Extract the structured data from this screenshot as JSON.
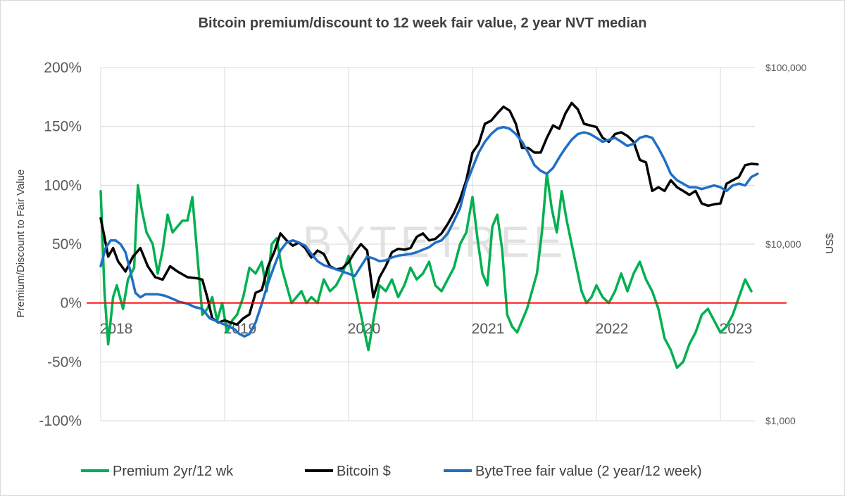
{
  "chart_data": {
    "type": "line",
    "title": "Bitcoin premium/discount to 12 week fair value, 2 year NVT median",
    "ylabel": "Premium/Discount to Fair Value",
    "y2label": "US$",
    "watermark": "BYTETREE",
    "x_ticks": [
      2018,
      2019,
      2020,
      2021,
      2022,
      2023
    ],
    "xlim": [
      2018.0,
      2023.4
    ],
    "ylim": [
      -100,
      200
    ],
    "y_ticks": [
      {
        "value": 200,
        "label": "200%"
      },
      {
        "value": 150,
        "label": "150%"
      },
      {
        "value": 100,
        "label": "100%"
      },
      {
        "value": 50,
        "label": "50%"
      },
      {
        "value": 0,
        "label": "0%"
      },
      {
        "value": -50,
        "label": "-50%"
      },
      {
        "value": -100,
        "label": "-100%"
      }
    ],
    "y2_scale": "log",
    "y2lim": [
      1000,
      100000
    ],
    "y2_ticks": [
      {
        "value": 100000,
        "label": "$100,000"
      },
      {
        "value": 10000,
        "label": "$10,000"
      },
      {
        "value": 1000,
        "label": "$1,000"
      }
    ],
    "reference_line": {
      "value": 0,
      "color": "#ff0000"
    },
    "legend": {
      "position": "bottom"
    },
    "series": [
      {
        "name": "Premium 2yr/12 wk",
        "axis": "left",
        "color": "#00b050",
        "x": [
          2018.0,
          2018.03,
          2018.06,
          2018.1,
          2018.13,
          2018.18,
          2018.22,
          2018.27,
          2018.3,
          2018.33,
          2018.37,
          2018.42,
          2018.46,
          2018.5,
          2018.54,
          2018.58,
          2018.62,
          2018.66,
          2018.7,
          2018.74,
          2018.78,
          2018.82,
          2018.86,
          2018.9,
          2018.94,
          2018.98,
          2019.02,
          2019.06,
          2019.1,
          2019.15,
          2019.2,
          2019.25,
          2019.3,
          2019.34,
          2019.38,
          2019.42,
          2019.46,
          2019.5,
          2019.54,
          2019.58,
          2019.62,
          2019.66,
          2019.7,
          2019.75,
          2019.8,
          2019.85,
          2019.9,
          2019.95,
          2020.0,
          2020.04,
          2020.08,
          2020.12,
          2020.16,
          2020.2,
          2020.25,
          2020.3,
          2020.35,
          2020.4,
          2020.45,
          2020.5,
          2020.55,
          2020.6,
          2020.65,
          2020.7,
          2020.75,
          2020.8,
          2020.85,
          2020.9,
          2020.95,
          2021.0,
          2021.04,
          2021.08,
          2021.12,
          2021.16,
          2021.2,
          2021.24,
          2021.28,
          2021.32,
          2021.36,
          2021.4,
          2021.44,
          2021.48,
          2021.52,
          2021.56,
          2021.6,
          2021.64,
          2021.68,
          2021.72,
          2021.76,
          2021.8,
          2021.84,
          2021.88,
          2021.92,
          2021.96,
          2022.0,
          2022.05,
          2022.1,
          2022.15,
          2022.2,
          2022.25,
          2022.3,
          2022.35,
          2022.4,
          2022.45,
          2022.5,
          2022.55,
          2022.6,
          2022.65,
          2022.7,
          2022.75,
          2022.8,
          2022.85,
          2022.9,
          2022.95,
          2023.0,
          2023.05,
          2023.1,
          2023.15,
          2023.2,
          2023.25
        ],
        "y": [
          95,
          10,
          -35,
          5,
          15,
          -5,
          20,
          30,
          100,
          80,
          60,
          50,
          25,
          45,
          75,
          60,
          65,
          70,
          70,
          90,
          40,
          -10,
          -5,
          5,
          -15,
          0,
          -25,
          -15,
          -10,
          5,
          30,
          25,
          35,
          10,
          50,
          55,
          30,
          15,
          0,
          5,
          10,
          0,
          5,
          0,
          20,
          10,
          15,
          25,
          40,
          20,
          0,
          -20,
          -40,
          -15,
          15,
          10,
          20,
          5,
          15,
          30,
          20,
          25,
          35,
          15,
          10,
          20,
          30,
          50,
          60,
          90,
          55,
          25,
          15,
          65,
          75,
          45,
          -10,
          -20,
          -25,
          -15,
          -5,
          10,
          25,
          60,
          110,
          80,
          60,
          95,
          70,
          50,
          30,
          10,
          0,
          5,
          15,
          5,
          0,
          10,
          25,
          10,
          25,
          35,
          20,
          10,
          -5,
          -30,
          -40,
          -55,
          -50,
          -35,
          -25,
          -10,
          -5,
          -15,
          -25,
          -20,
          -10,
          5,
          20,
          10
        ]
      },
      {
        "name": "Bitcoin $",
        "axis": "right",
        "color": "#000000",
        "x": [
          2018.0,
          2018.03,
          2018.06,
          2018.1,
          2018.14,
          2018.2,
          2018.26,
          2018.32,
          2018.38,
          2018.44,
          2018.5,
          2018.56,
          2018.62,
          2018.7,
          2018.78,
          2018.82,
          2018.86,
          2018.9,
          2018.95,
          2019.0,
          2019.05,
          2019.1,
          2019.15,
          2019.2,
          2019.25,
          2019.3,
          2019.35,
          2019.4,
          2019.45,
          2019.5,
          2019.55,
          2019.6,
          2019.65,
          2019.7,
          2019.75,
          2019.8,
          2019.85,
          2019.9,
          2019.95,
          2020.0,
          2020.05,
          2020.1,
          2020.15,
          2020.2,
          2020.25,
          2020.3,
          2020.35,
          2020.4,
          2020.45,
          2020.5,
          2020.55,
          2020.6,
          2020.65,
          2020.7,
          2020.75,
          2020.8,
          2020.85,
          2020.9,
          2020.95,
          2021.0,
          2021.05,
          2021.1,
          2021.15,
          2021.2,
          2021.25,
          2021.3,
          2021.35,
          2021.4,
          2021.45,
          2021.5,
          2021.55,
          2021.6,
          2021.65,
          2021.7,
          2021.75,
          2021.8,
          2021.85,
          2021.9,
          2021.95,
          2022.0,
          2022.05,
          2022.1,
          2022.15,
          2022.2,
          2022.25,
          2022.3,
          2022.35,
          2022.4,
          2022.45,
          2022.5,
          2022.55,
          2022.6,
          2022.65,
          2022.7,
          2022.75,
          2022.8,
          2022.85,
          2022.9,
          2022.95,
          2023.0,
          2023.05,
          2023.1,
          2023.15,
          2023.2,
          2023.25,
          2023.3
        ],
        "y": [
          14000,
          11000,
          8500,
          9500,
          8000,
          7000,
          8500,
          9500,
          7500,
          6500,
          6300,
          7500,
          7000,
          6500,
          6400,
          6300,
          5000,
          3800,
          3600,
          3700,
          3600,
          3500,
          3800,
          4000,
          5300,
          5500,
          7500,
          9000,
          11500,
          10500,
          9800,
          10200,
          9500,
          8400,
          9200,
          8800,
          7500,
          7200,
          7300,
          7900,
          9000,
          10000,
          9200,
          5000,
          6500,
          7500,
          9000,
          9400,
          9300,
          9500,
          11000,
          11500,
          10500,
          10700,
          11500,
          13000,
          15000,
          18000,
          23000,
          33000,
          37000,
          48000,
          50000,
          55000,
          60000,
          57000,
          48000,
          35000,
          35000,
          33000,
          33000,
          40000,
          47000,
          45000,
          55000,
          63000,
          58000,
          48000,
          47000,
          46000,
          40000,
          38000,
          42000,
          43000,
          41000,
          38000,
          30000,
          29000,
          20000,
          21000,
          20000,
          23000,
          21000,
          20000,
          19000,
          20000,
          17000,
          16500,
          16800,
          17000,
          22000,
          23000,
          24000,
          28000,
          28500,
          28300
        ]
      },
      {
        "name": "ByteTree fair value (2 year/12 week)",
        "axis": "right",
        "color": "#1f6fc5",
        "x": [
          2018.0,
          2018.04,
          2018.08,
          2018.12,
          2018.16,
          2018.2,
          2018.24,
          2018.28,
          2018.32,
          2018.36,
          2018.4,
          2018.46,
          2018.52,
          2018.58,
          2018.64,
          2018.7,
          2018.76,
          2018.82,
          2018.88,
          2018.92,
          2018.96,
          2019.0,
          2019.04,
          2019.08,
          2019.12,
          2019.16,
          2019.2,
          2019.25,
          2019.3,
          2019.35,
          2019.4,
          2019.45,
          2019.5,
          2019.55,
          2019.6,
          2019.65,
          2019.7,
          2019.75,
          2019.8,
          2019.85,
          2019.9,
          2019.95,
          2020.0,
          2020.05,
          2020.1,
          2020.15,
          2020.2,
          2020.25,
          2020.3,
          2020.35,
          2020.4,
          2020.45,
          2020.5,
          2020.55,
          2020.6,
          2020.65,
          2020.7,
          2020.75,
          2020.8,
          2020.85,
          2020.9,
          2020.95,
          2021.0,
          2021.05,
          2021.1,
          2021.15,
          2021.2,
          2021.25,
          2021.3,
          2021.35,
          2021.4,
          2021.45,
          2021.5,
          2021.55,
          2021.6,
          2021.65,
          2021.7,
          2021.75,
          2021.8,
          2021.85,
          2021.9,
          2021.95,
          2022.0,
          2022.05,
          2022.1,
          2022.15,
          2022.2,
          2022.25,
          2022.3,
          2022.35,
          2022.4,
          2022.45,
          2022.5,
          2022.55,
          2022.6,
          2022.65,
          2022.7,
          2022.75,
          2022.8,
          2022.85,
          2022.9,
          2022.95,
          2023.0,
          2023.05,
          2023.1,
          2023.15,
          2023.2,
          2023.25,
          2023.3
        ],
        "y": [
          7500,
          9500,
          10500,
          10500,
          10000,
          9000,
          7000,
          5300,
          5000,
          5200,
          5200,
          5200,
          5100,
          4900,
          4700,
          4600,
          4400,
          4300,
          3800,
          3700,
          3600,
          3500,
          3400,
          3300,
          3100,
          3000,
          3100,
          3600,
          4600,
          6000,
          7500,
          9200,
          10200,
          10500,
          10200,
          9800,
          8800,
          8000,
          7600,
          7400,
          7200,
          7000,
          6800,
          6600,
          7500,
          8500,
          8300,
          8000,
          8100,
          8400,
          8600,
          8700,
          8800,
          9000,
          9300,
          9600,
          10200,
          10500,
          11500,
          13500,
          16000,
          22000,
          27000,
          33000,
          38000,
          42000,
          45000,
          46000,
          45000,
          42000,
          38000,
          33000,
          28000,
          26000,
          25000,
          27000,
          31000,
          35000,
          39000,
          42000,
          43000,
          42000,
          40000,
          38000,
          39000,
          40000,
          38000,
          36000,
          37000,
          40000,
          41000,
          40000,
          35000,
          30000,
          25000,
          23000,
          22000,
          21000,
          21000,
          20500,
          21000,
          21500,
          21000,
          20000,
          21500,
          22000,
          21500,
          24000,
          25000
        ]
      }
    ]
  }
}
